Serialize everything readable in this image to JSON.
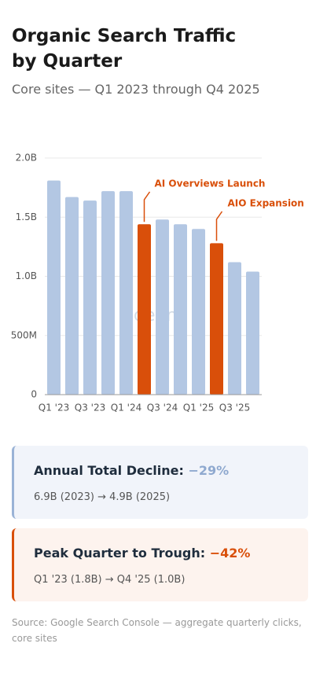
{
  "chart_data": {
    "type": "bar",
    "title": "Organic Search Traffic by Quarter",
    "subtitle": "Core sites — Q1 2023 through Q4 2025",
    "categories": [
      "Q1 '23",
      null,
      "Q3 '23",
      null,
      "Q1 '24",
      null,
      "Q3 '24",
      null,
      "Q1 '25",
      null,
      "Q3 '25",
      null
    ],
    "values": [
      1.81,
      1.67,
      1.64,
      1.72,
      1.72,
      1.44,
      1.48,
      1.44,
      1.4,
      1.28,
      1.12,
      1.04
    ],
    "colors": [
      "#b3c7e3",
      "#b3c7e3",
      "#b3c7e3",
      "#b3c7e3",
      "#b3c7e3",
      "#d94f0a",
      "#b3c7e3",
      "#b3c7e3",
      "#b3c7e3",
      "#d94f0a",
      "#b3c7e3",
      "#b3c7e3"
    ],
    "ylim": [
      0,
      2
    ],
    "yticks": [
      0,
      {
        "value": 0.5,
        "label": "500M"
      },
      {
        "value": 1,
        "label": "1.0B"
      },
      {
        "value": 1.5,
        "label": "1.5B"
      },
      {
        "value": 2,
        "label": "2.0B"
      }
    ],
    "grid": true,
    "annotations": [
      {
        "text": "AI Overviews Launch",
        "category": 5
      },
      {
        "text": "AIO Expansion",
        "category": 9
      }
    ],
    "watermark": "define"
  },
  "cards": [
    {
      "title": "Annual Total Decline:",
      "value": "−29%",
      "detail": "6.9B (2023) → 4.9B (2025)"
    },
    {
      "title": "Peak Quarter to Trough:",
      "value": "−42%",
      "detail": "Q1 '23 (1.8B) → Q4 '25 (1.0B)"
    }
  ],
  "source": "Source: Google Search Console — aggregate quarterly clicks, core sites"
}
